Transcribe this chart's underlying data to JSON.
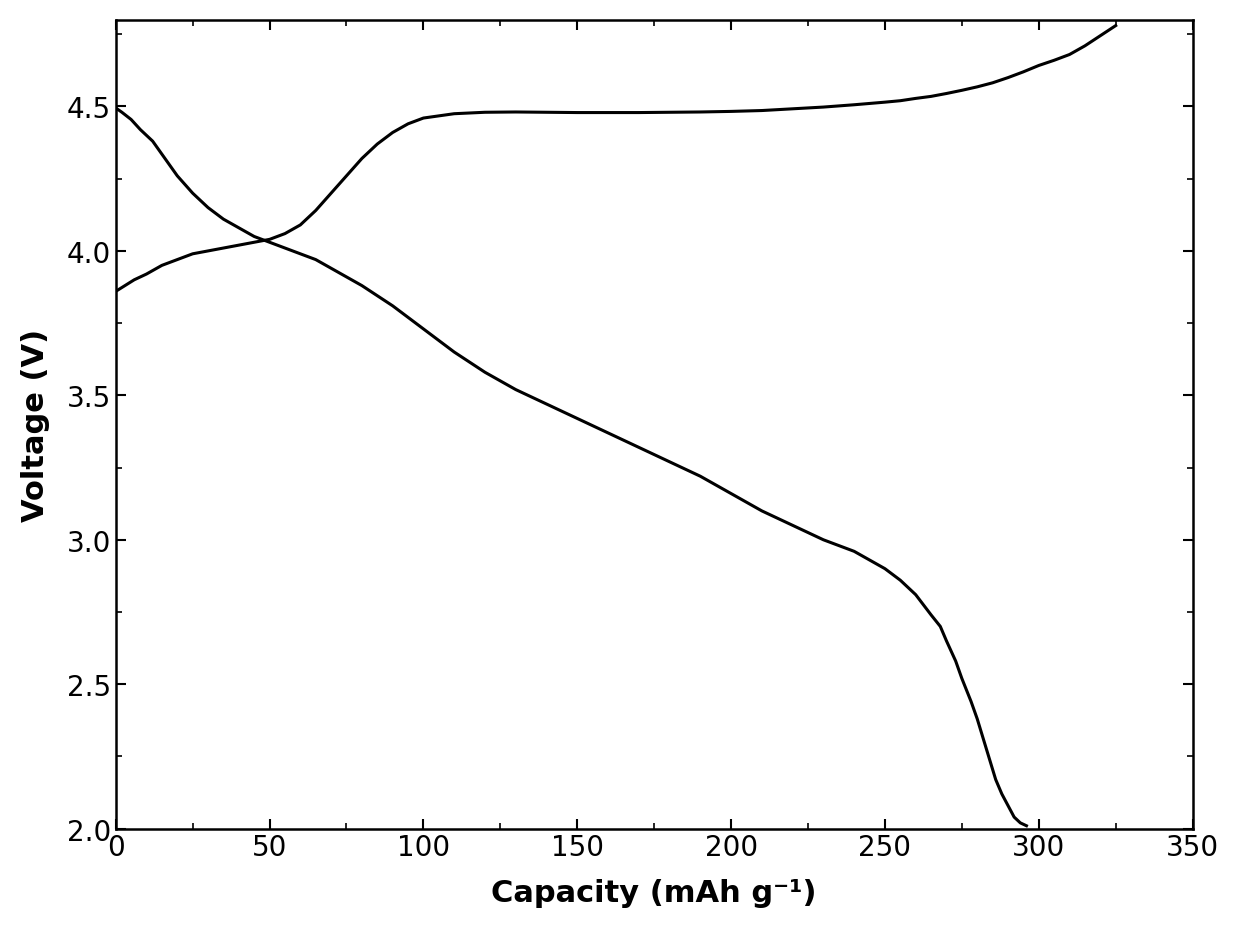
{
  "title": "",
  "xlabel": "Capacity (mAh g⁻¹)",
  "ylabel": "Voltage (V)",
  "xlim": [
    0,
    350
  ],
  "ylim": [
    2.0,
    4.8
  ],
  "xticks": [
    0,
    50,
    100,
    150,
    200,
    250,
    300,
    350
  ],
  "yticks": [
    2.0,
    2.5,
    3.0,
    3.5,
    4.0,
    4.5
  ],
  "line_color": "#000000",
  "line_width": 2.2,
  "background_color": "#ffffff",
  "xlabel_fontsize": 22,
  "ylabel_fontsize": 22,
  "tick_fontsize": 20,
  "charge_curve": {
    "x": [
      0,
      3,
      6,
      10,
      15,
      20,
      25,
      30,
      35,
      40,
      45,
      50,
      55,
      60,
      65,
      70,
      75,
      80,
      85,
      90,
      95,
      100,
      110,
      120,
      130,
      140,
      150,
      160,
      170,
      180,
      190,
      200,
      210,
      220,
      230,
      240,
      250,
      255,
      260,
      265,
      270,
      275,
      280,
      285,
      290,
      295,
      300,
      305,
      310,
      315,
      320,
      325
    ],
    "y": [
      3.86,
      3.88,
      3.9,
      3.92,
      3.95,
      3.97,
      3.99,
      4.0,
      4.01,
      4.02,
      4.03,
      4.04,
      4.06,
      4.09,
      4.14,
      4.2,
      4.26,
      4.32,
      4.37,
      4.41,
      4.44,
      4.46,
      4.475,
      4.48,
      4.481,
      4.48,
      4.479,
      4.479,
      4.479,
      4.48,
      4.481,
      4.483,
      4.486,
      4.492,
      4.498,
      4.506,
      4.515,
      4.52,
      4.528,
      4.535,
      4.545,
      4.556,
      4.568,
      4.582,
      4.6,
      4.62,
      4.642,
      4.66,
      4.68,
      4.71,
      4.745,
      4.78
    ]
  },
  "discharge_curve": {
    "x": [
      0,
      2,
      5,
      8,
      12,
      16,
      20,
      25,
      30,
      35,
      40,
      45,
      50,
      55,
      60,
      65,
      70,
      80,
      90,
      100,
      110,
      120,
      130,
      140,
      150,
      160,
      170,
      180,
      190,
      200,
      210,
      220,
      230,
      240,
      245,
      250,
      255,
      260,
      265,
      268,
      270,
      273,
      275,
      278,
      280,
      282,
      284,
      286,
      288,
      290,
      292,
      294,
      296
    ],
    "y": [
      4.495,
      4.48,
      4.455,
      4.42,
      4.38,
      4.32,
      4.26,
      4.2,
      4.15,
      4.11,
      4.08,
      4.05,
      4.03,
      4.01,
      3.99,
      3.97,
      3.94,
      3.88,
      3.81,
      3.73,
      3.65,
      3.58,
      3.52,
      3.47,
      3.42,
      3.37,
      3.32,
      3.27,
      3.22,
      3.16,
      3.1,
      3.05,
      3.0,
      2.96,
      2.93,
      2.9,
      2.86,
      2.81,
      2.74,
      2.7,
      2.65,
      2.58,
      2.52,
      2.44,
      2.38,
      2.31,
      2.24,
      2.17,
      2.12,
      2.08,
      2.04,
      2.02,
      2.01
    ]
  }
}
